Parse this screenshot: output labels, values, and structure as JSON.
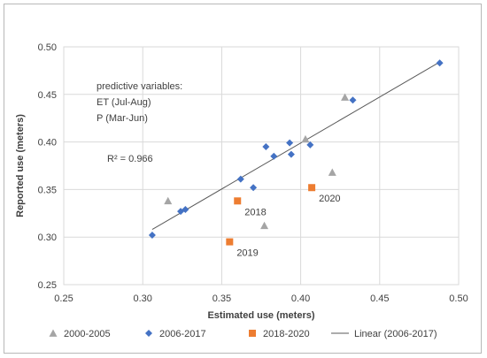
{
  "chart_data": {
    "type": "scatter",
    "xlabel": "Estimated use (meters)",
    "ylabel": "Reported use (meters)",
    "xlim": [
      0.25,
      0.5
    ],
    "ylim": [
      0.25,
      0.5
    ],
    "x_ticks": [
      "0.25",
      "0.30",
      "0.35",
      "0.40",
      "0.45",
      "0.50"
    ],
    "y_ticks": [
      "0.25",
      "0.30",
      "0.35",
      "0.40",
      "0.45",
      "0.50"
    ],
    "grid": true,
    "legend_position": "bottom",
    "series": [
      {
        "name": "2000-2005",
        "marker": "triangle",
        "color": "#a5a5a5",
        "points": [
          [
            0.316,
            0.338
          ],
          [
            0.377,
            0.312
          ],
          [
            0.403,
            0.403
          ],
          [
            0.42,
            0.368
          ],
          [
            0.428,
            0.447
          ]
        ]
      },
      {
        "name": "2006-2017",
        "marker": "diamond",
        "color": "#4472c4",
        "points": [
          [
            0.306,
            0.302
          ],
          [
            0.324,
            0.327
          ],
          [
            0.327,
            0.329
          ],
          [
            0.362,
            0.361
          ],
          [
            0.37,
            0.352
          ],
          [
            0.378,
            0.395
          ],
          [
            0.383,
            0.385
          ],
          [
            0.393,
            0.399
          ],
          [
            0.394,
            0.387
          ],
          [
            0.406,
            0.397
          ],
          [
            0.433,
            0.444
          ],
          [
            0.488,
            0.483
          ]
        ]
      },
      {
        "name": "2018-2020",
        "marker": "square",
        "color": "#ed7d31",
        "points": [
          [
            0.36,
            0.338
          ],
          [
            0.355,
            0.295
          ],
          [
            0.407,
            0.352
          ]
        ],
        "point_labels": [
          "2018",
          "2019",
          "2020"
        ]
      },
      {
        "name": "Linear (2006-2017)",
        "marker": "line",
        "color": "#595959",
        "points": [
          [
            0.306,
            0.308
          ],
          [
            0.488,
            0.484
          ]
        ]
      }
    ],
    "annotations": {
      "predictive_title": "predictive variables:",
      "predictive_et": "ET (Jul-Aug)",
      "predictive_p": "P   (Mar-Jun)",
      "r_squared": "R² = 0.966"
    }
  }
}
